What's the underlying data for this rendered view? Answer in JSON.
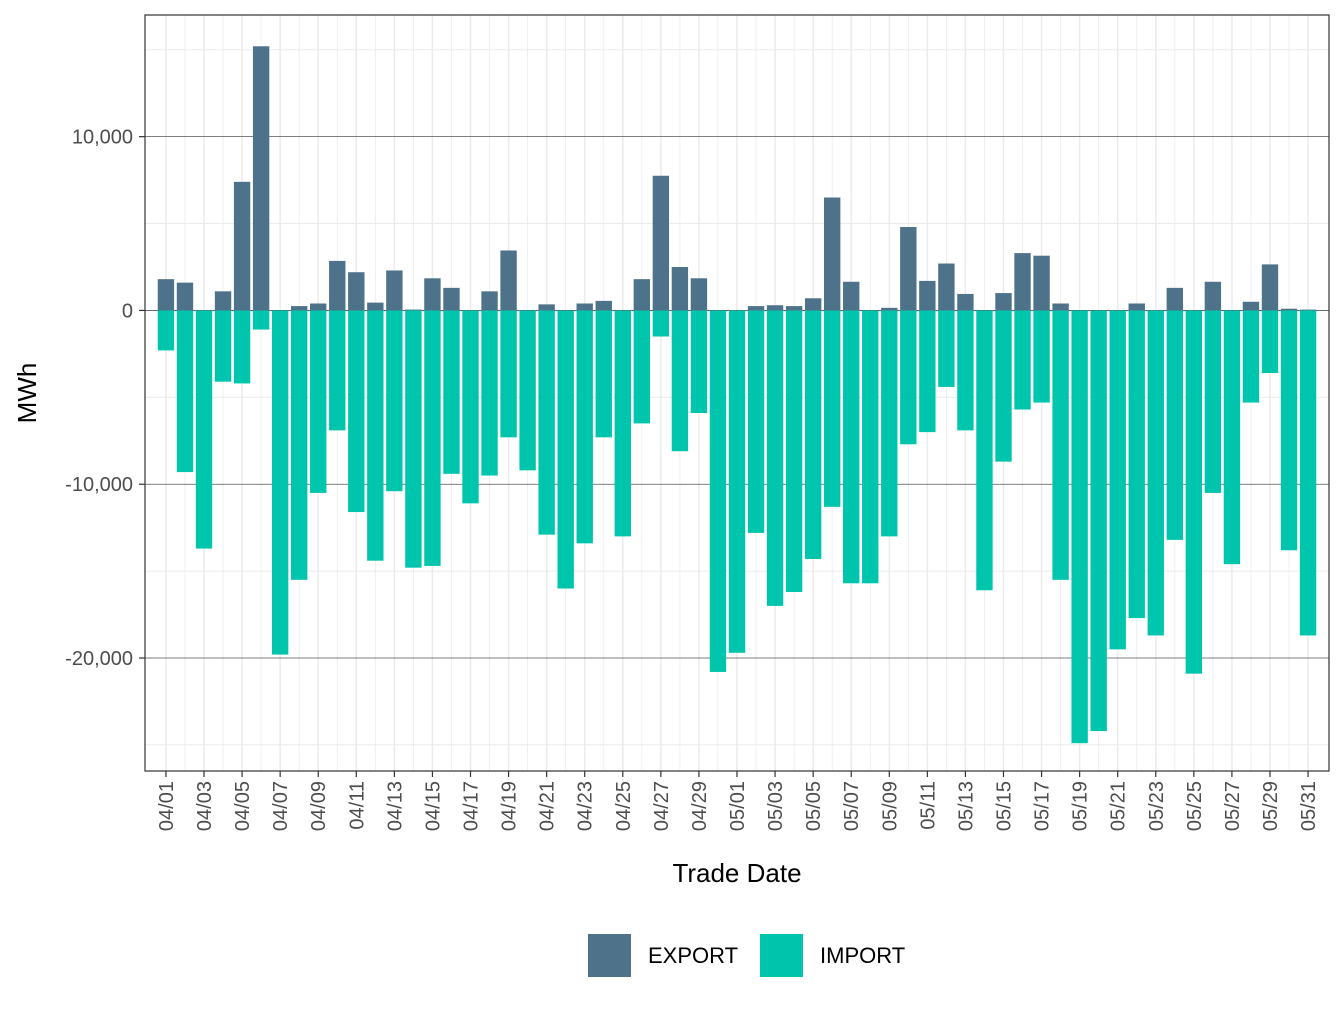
{
  "chart_data": {
    "type": "bar",
    "stacked": "diverging",
    "title": "",
    "xlabel": "Trade Date",
    "ylabel": "MWh",
    "ylim": [
      -26500,
      17000
    ],
    "y_ticks": [
      10000,
      0,
      -10000,
      -20000
    ],
    "y_tick_labels": [
      "10,000",
      "0",
      "-10,000",
      "-20,000"
    ],
    "grid": true,
    "legend_position": "bottom",
    "categories": [
      "04/01",
      "04/02",
      "04/03",
      "04/04",
      "04/05",
      "04/06",
      "04/07",
      "04/08",
      "04/09",
      "04/10",
      "04/11",
      "04/12",
      "04/13",
      "04/14",
      "04/15",
      "04/16",
      "04/17",
      "04/18",
      "04/19",
      "04/20",
      "04/21",
      "04/22",
      "04/23",
      "04/24",
      "04/25",
      "04/26",
      "04/27",
      "04/28",
      "04/29",
      "04/30",
      "05/01",
      "05/02",
      "05/03",
      "05/04",
      "05/05",
      "05/06",
      "05/07",
      "05/08",
      "05/09",
      "05/10",
      "05/11",
      "05/12",
      "05/13",
      "05/14",
      "05/15",
      "05/16",
      "05/17",
      "05/18",
      "05/19",
      "05/20",
      "05/21",
      "05/22",
      "05/23",
      "05/24",
      "05/25",
      "05/26",
      "05/27",
      "05/28",
      "05/29",
      "05/30",
      "05/31"
    ],
    "x_tick_labels": [
      "04/01",
      "04/03",
      "04/05",
      "04/07",
      "04/09",
      "04/11",
      "04/13",
      "04/15",
      "04/17",
      "04/19",
      "04/21",
      "04/23",
      "04/25",
      "04/27",
      "04/29",
      "05/01",
      "05/03",
      "05/05",
      "05/07",
      "05/09",
      "05/11",
      "05/13",
      "05/15",
      "05/17",
      "05/19",
      "05/21",
      "05/23",
      "05/25",
      "05/27",
      "05/29",
      "05/31"
    ],
    "series": [
      {
        "name": "EXPORT",
        "color": "#4e7289",
        "values": [
          1800,
          1600,
          0,
          1100,
          7400,
          15200,
          0,
          250,
          400,
          2850,
          2200,
          450,
          2300,
          50,
          1850,
          1300,
          0,
          1100,
          3450,
          0,
          350,
          0,
          400,
          550,
          0,
          1800,
          7750,
          2500,
          1850,
          0,
          0,
          250,
          300,
          250,
          700,
          6500,
          1650,
          0,
          150,
          4800,
          1700,
          2700,
          950,
          0,
          1000,
          3300,
          3150,
          400,
          0,
          0,
          0,
          400,
          0,
          1300,
          0,
          1650,
          0,
          500,
          2650,
          100,
          50
        ]
      },
      {
        "name": "IMPORT",
        "color": "#00c5ad",
        "values": [
          -2300,
          -9300,
          -13700,
          -4100,
          -4200,
          -1100,
          -19800,
          -15500,
          -10500,
          -6900,
          -11600,
          -14400,
          -10400,
          -14800,
          -14700,
          -9400,
          -11100,
          -9500,
          -7300,
          -9200,
          -12900,
          -16000,
          -13400,
          -7300,
          -13000,
          -6500,
          -1500,
          -8100,
          -5900,
          -20800,
          -19700,
          -12800,
          -17000,
          -16200,
          -14300,
          -11300,
          -15700,
          -15700,
          -13000,
          -7700,
          -7000,
          -4400,
          -6900,
          -16100,
          -8700,
          -5700,
          -5300,
          -15500,
          -24900,
          -24200,
          -19500,
          -17700,
          -18700,
          -13200,
          -20900,
          -10500,
          -14600,
          -5300,
          -3600,
          -13800,
          -18700
        ]
      }
    ]
  }
}
